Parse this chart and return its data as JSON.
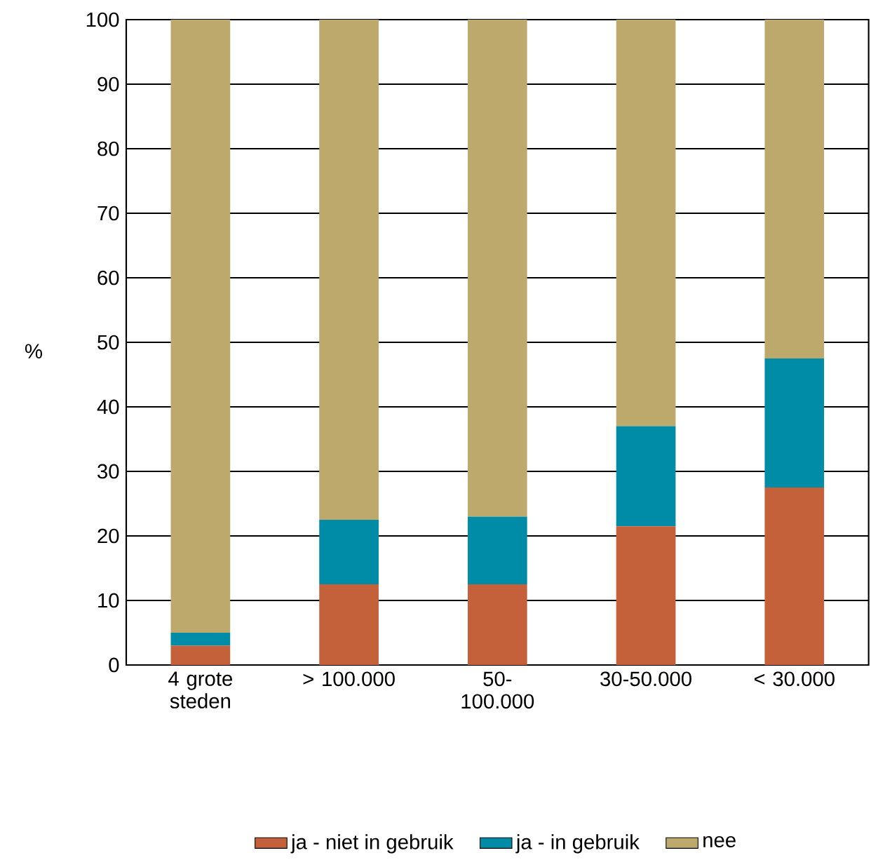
{
  "chart_data": {
    "type": "bar",
    "stacked": true,
    "ylabel": "%",
    "categories": [
      "4 grote steden",
      "> 100.000",
      "50-100.000",
      "30-50.000",
      "< 30.000"
    ],
    "series": [
      {
        "name": "ja - niet in gebruik",
        "color": "#c4613a",
        "values": [
          3,
          12.5,
          12.5,
          21.5,
          27.5
        ]
      },
      {
        "name": "ja - in gebruik",
        "color": "#008ba6",
        "values": [
          2,
          10,
          10.5,
          15.5,
          20
        ]
      },
      {
        "name": "nee",
        "color": "#bca96b",
        "values": [
          95,
          77.5,
          77,
          63,
          52.5
        ]
      }
    ],
    "ylim": [
      0,
      100
    ],
    "yticks": [
      0,
      10,
      20,
      30,
      40,
      50,
      60,
      70,
      80,
      90,
      100
    ],
    "grid": "y",
    "legend": "bottom"
  }
}
